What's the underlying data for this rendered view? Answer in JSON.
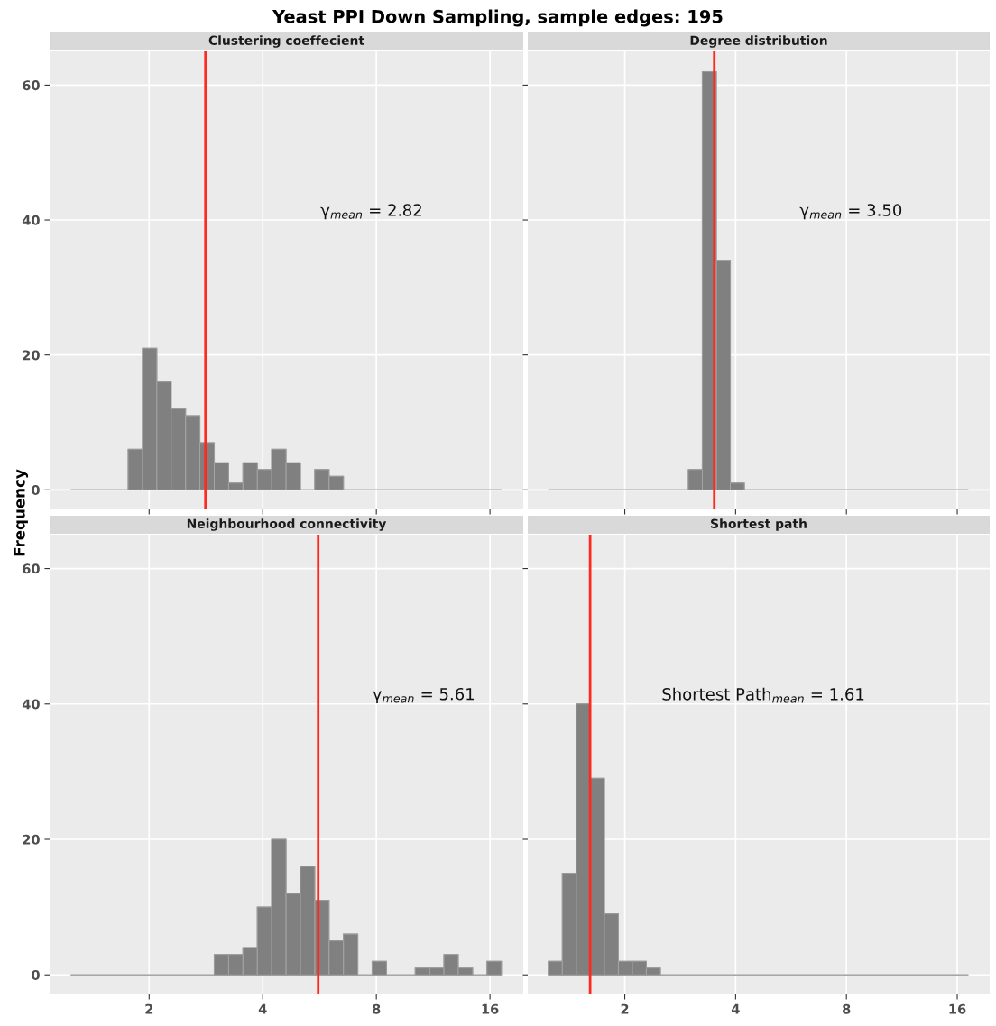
{
  "chart_data": [
    {
      "type": "histogram",
      "title": "Yeast PPI Down Sampling, sample edges: 195",
      "subtitle": "Clustering coeffecient",
      "ylabel": "Frequency",
      "bins": [
        1.24,
        1.353,
        1.477,
        1.612,
        1.76,
        1.921,
        2.096,
        2.288,
        2.498,
        2.726,
        2.976,
        3.248,
        3.545,
        3.87,
        4.224,
        4.61,
        5.032,
        5.493,
        5.995,
        6.544,
        7.143,
        7.796,
        8.51,
        9.288,
        10.14,
        11.07,
        12.08,
        13.18,
        14.39,
        15.71,
        17.15
      ],
      "values": [
        0,
        0,
        0,
        0,
        6,
        21,
        16,
        12,
        11,
        7,
        4,
        1,
        4,
        3,
        6,
        4,
        0,
        3,
        2,
        0,
        0,
        0,
        0,
        0,
        0,
        0,
        0,
        0,
        0,
        0
      ],
      "color": "#808080",
      "log": "x",
      "xlim": [
        1.09,
        19.6
      ],
      "xticks": [
        2,
        4,
        8,
        16
      ],
      "ylim": [
        -2.9,
        65
      ],
      "yticks": [
        0,
        20,
        40,
        60
      ],
      "grid": true,
      "tick_labels": "y",
      "ref_lines": [
        {
          "axis": "x",
          "value": 2.82,
          "color": "#ff2a1f"
        }
      ],
      "annotations": [
        "γ$_{mean}$ = 2.82"
      ]
    },
    {
      "type": "histogram",
      "subtitle": "Degree distribution",
      "bins": [
        1.24,
        1.353,
        1.477,
        1.612,
        1.76,
        1.921,
        2.096,
        2.288,
        2.498,
        2.726,
        2.976,
        3.248,
        3.545,
        3.87,
        4.224,
        4.61,
        5.032,
        5.493,
        5.995,
        6.544,
        7.143,
        7.796,
        8.51,
        9.288,
        10.14,
        11.07,
        12.08,
        13.18,
        14.39,
        15.71,
        17.15
      ],
      "values": [
        0,
        0,
        0,
        0,
        0,
        0,
        0,
        0,
        0,
        0,
        3,
        62,
        34,
        1,
        0,
        0,
        0,
        0,
        0,
        0,
        0,
        0,
        0,
        0,
        0,
        0,
        0,
        0,
        0,
        0
      ],
      "color": "#808080",
      "log": "x",
      "xlim": [
        1.09,
        19.6
      ],
      "xticks": [
        2,
        4,
        8,
        16
      ],
      "ylim": [
        -2.9,
        65
      ],
      "yticks": [
        0,
        20,
        40,
        60
      ],
      "grid": true,
      "tick_labels": false,
      "ref_lines": [
        {
          "axis": "x",
          "value": 3.5,
          "color": "#ff2a1f"
        }
      ],
      "annotations": [
        "γ$_{mean}$ = 3.50"
      ]
    },
    {
      "type": "histogram",
      "subtitle": "Neighbourhood connectivity",
      "bins": [
        1.24,
        1.353,
        1.477,
        1.612,
        1.76,
        1.921,
        2.096,
        2.288,
        2.498,
        2.726,
        2.976,
        3.248,
        3.545,
        3.87,
        4.224,
        4.61,
        5.032,
        5.493,
        5.995,
        6.544,
        7.143,
        7.796,
        8.51,
        9.288,
        10.14,
        11.07,
        12.08,
        13.18,
        14.39,
        15.71,
        17.15
      ],
      "values": [
        0,
        0,
        0,
        0,
        0,
        0,
        0,
        0,
        0,
        0,
        3,
        3,
        4,
        10,
        20,
        12,
        16,
        11,
        5,
        6,
        0,
        2,
        0,
        0,
        1,
        1,
        3,
        1,
        0,
        2
      ],
      "color": "#808080",
      "log": "x",
      "xlim": [
        1.09,
        19.6
      ],
      "xticks": [
        2,
        4,
        8,
        16
      ],
      "ylim": [
        -2.9,
        65
      ],
      "yticks": [
        0,
        20,
        40,
        60
      ],
      "grid": true,
      "ref_lines": [
        {
          "axis": "x",
          "value": 5.61,
          "color": "#ff2a1f"
        }
      ],
      "annotations": [
        "γ$_{mean}$ = 5.61"
      ]
    },
    {
      "type": "histogram",
      "subtitle": "Shortest path",
      "bins": [
        1.24,
        1.353,
        1.477,
        1.612,
        1.76,
        1.921,
        2.096,
        2.288,
        2.498,
        2.726,
        2.976,
        3.248,
        3.545,
        3.87,
        4.224,
        4.61,
        5.032,
        5.493,
        5.995,
        6.544,
        7.143,
        7.796,
        8.51,
        9.288,
        10.14,
        11.07,
        12.08,
        13.18,
        14.39,
        15.71,
        17.15
      ],
      "values": [
        2,
        15,
        40,
        29,
        9,
        2,
        2,
        1,
        0,
        0,
        0,
        0,
        0,
        0,
        0,
        0,
        0,
        0,
        0,
        0,
        0,
        0,
        0,
        0,
        0,
        0,
        0,
        0,
        0,
        0
      ],
      "color": "#808080",
      "log": "x",
      "xlim": [
        1.09,
        19.6
      ],
      "xticks": [
        2,
        4,
        8,
        16
      ],
      "ylim": [
        -2.9,
        65
      ],
      "yticks": [
        0,
        20,
        40,
        60
      ],
      "grid": true,
      "tick_labels": "x",
      "ref_lines": [
        {
          "axis": "x",
          "value": 1.61,
          "color": "#ff2a1f"
        }
      ],
      "annotations": [
        "Shortest Path$_{mean}$ = 1.61"
      ]
    }
  ]
}
